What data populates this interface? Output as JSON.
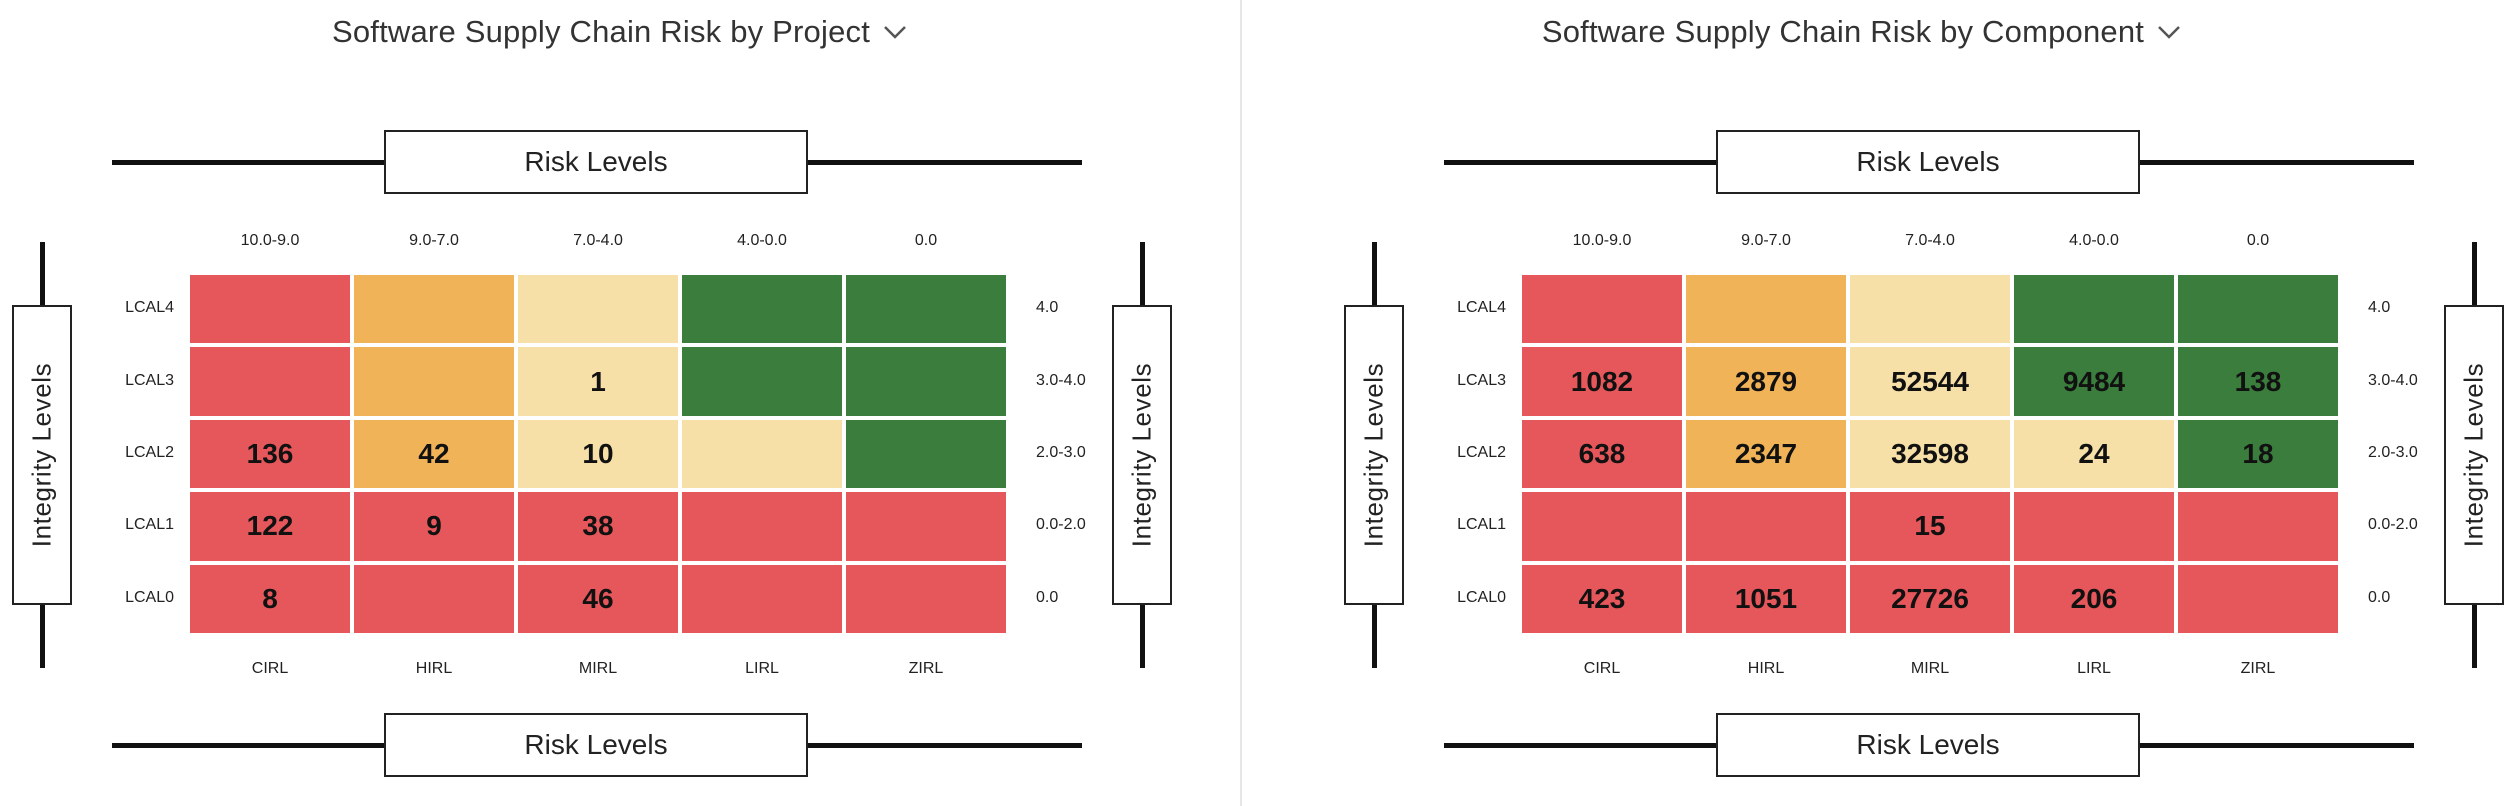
{
  "colors": {
    "red": "#e5575a",
    "orange": "#f0b357",
    "lightyellow": "#f6e0a8",
    "green": "#3a7d3c"
  },
  "chart_data": [
    {
      "type": "heatmap",
      "title": "Software Supply Chain Risk by Project",
      "title_icon": "chevron-down-icon",
      "risk_axis_label": "Risk Levels",
      "integrity_axis_label": "Integrity Levels",
      "col_ranges": [
        "10.0-9.0",
        "9.0-7.0",
        "7.0-4.0",
        "4.0-0.0",
        "0.0"
      ],
      "col_codes": [
        "CIRL",
        "HIRL",
        "MIRL",
        "LIRL",
        "ZIRL"
      ],
      "row_codes": [
        "LCAL4",
        "LCAL3",
        "LCAL2",
        "LCAL1",
        "LCAL0"
      ],
      "row_ranges": [
        "4.0",
        "3.0-4.0",
        "2.0-3.0",
        "0.0-2.0",
        "0.0"
      ],
      "values": [
        [
          null,
          null,
          null,
          null,
          null
        ],
        [
          null,
          null,
          1,
          null,
          null
        ],
        [
          136,
          42,
          10,
          null,
          null
        ],
        [
          122,
          9,
          38,
          null,
          null
        ],
        [
          8,
          null,
          46,
          null,
          null
        ]
      ],
      "cell_colors": [
        [
          "red",
          "orange",
          "lightyellow",
          "green",
          "green"
        ],
        [
          "red",
          "orange",
          "lightyellow",
          "green",
          "green"
        ],
        [
          "red",
          "orange",
          "lightyellow",
          "lightyellow",
          "green"
        ],
        [
          "red",
          "red",
          "red",
          "red",
          "red"
        ],
        [
          "red",
          "red",
          "red",
          "red",
          "red"
        ]
      ]
    },
    {
      "type": "heatmap",
      "title": "Software Supply Chain Risk by Component",
      "title_icon": "chevron-down-icon",
      "risk_axis_label": "Risk Levels",
      "integrity_axis_label": "Integrity Levels",
      "col_ranges": [
        "10.0-9.0",
        "9.0-7.0",
        "7.0-4.0",
        "4.0-0.0",
        "0.0"
      ],
      "col_codes": [
        "CIRL",
        "HIRL",
        "MIRL",
        "LIRL",
        "ZIRL"
      ],
      "row_codes": [
        "LCAL4",
        "LCAL3",
        "LCAL2",
        "LCAL1",
        "LCAL0"
      ],
      "row_ranges": [
        "4.0",
        "3.0-4.0",
        "2.0-3.0",
        "0.0-2.0",
        "0.0"
      ],
      "values": [
        [
          null,
          null,
          null,
          null,
          null
        ],
        [
          1082,
          2879,
          52544,
          9484,
          138
        ],
        [
          638,
          2347,
          32598,
          24,
          18
        ],
        [
          null,
          null,
          15,
          null,
          null
        ],
        [
          423,
          1051,
          27726,
          206,
          null
        ]
      ],
      "cell_colors": [
        [
          "red",
          "orange",
          "lightyellow",
          "green",
          "green"
        ],
        [
          "red",
          "orange",
          "lightyellow",
          "green",
          "green"
        ],
        [
          "red",
          "orange",
          "lightyellow",
          "lightyellow",
          "green"
        ],
        [
          "red",
          "red",
          "red",
          "red",
          "red"
        ],
        [
          "red",
          "red",
          "red",
          "red",
          "red"
        ]
      ]
    }
  ]
}
